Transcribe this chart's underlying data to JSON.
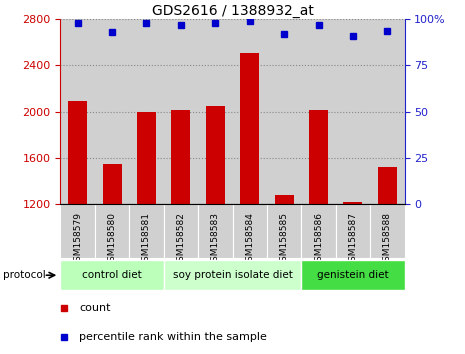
{
  "title": "GDS2616 / 1388932_at",
  "samples": [
    "GSM158579",
    "GSM158580",
    "GSM158581",
    "GSM158582",
    "GSM158583",
    "GSM158584",
    "GSM158585",
    "GSM158586",
    "GSM158587",
    "GSM158588"
  ],
  "counts": [
    2090,
    1540,
    2000,
    2010,
    2050,
    2510,
    1270,
    2010,
    1210,
    1520
  ],
  "percentile_ranks": [
    98,
    93,
    98,
    97,
    98,
    99,
    92,
    97,
    91,
    94
  ],
  "ylim_left": [
    1200,
    2800
  ],
  "ylim_right": [
    0,
    100
  ],
  "yticks_left": [
    1200,
    1600,
    2000,
    2400,
    2800
  ],
  "yticks_right": [
    0,
    25,
    50,
    75,
    100
  ],
  "ytick_right_labels": [
    "0",
    "25",
    "50",
    "75",
    "100%"
  ],
  "bar_color": "#cc0000",
  "dot_color": "#0000cc",
  "col_bg_color": "#d0d0d0",
  "plot_bg_color": "#ffffff",
  "groups": [
    {
      "label": "control diet",
      "start": 0,
      "end": 3,
      "color": "#bbffbb"
    },
    {
      "label": "soy protein isolate diet",
      "start": 3,
      "end": 7,
      "color": "#ccffcc"
    },
    {
      "label": "genistein diet",
      "start": 7,
      "end": 10,
      "color": "#44dd44"
    }
  ],
  "protocol_label": "protocol",
  "legend_count_label": "count",
  "legend_pct_label": "percentile rank within the sample",
  "background_color": "#ffffff",
  "grid_color": "#888888",
  "label_color_left": "#cc0000",
  "label_color_right": "#2222cc",
  "title_fontsize": 10,
  "tick_fontsize": 8,
  "bar_width": 0.55
}
